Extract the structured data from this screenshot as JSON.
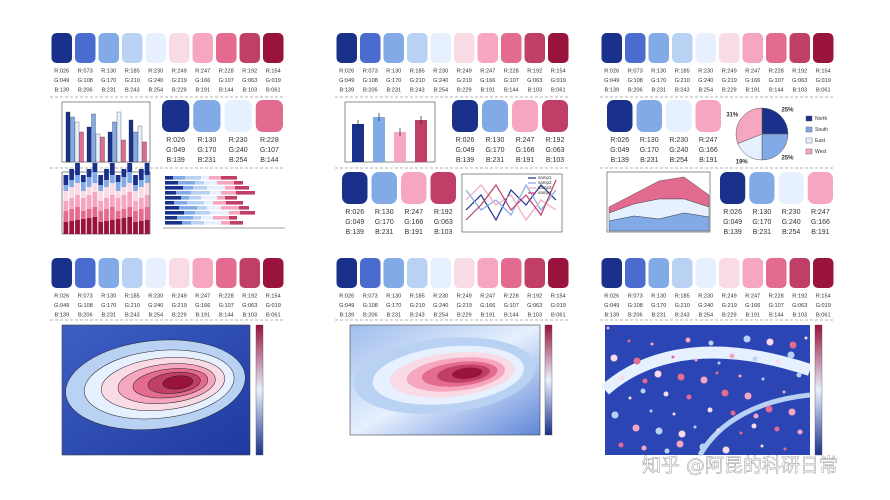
{
  "palette": [
    [
      "R:026",
      "G:049",
      "B:139"
    ],
    [
      "R:073",
      "G:108",
      "B:206"
    ],
    [
      "R:130",
      "G:170",
      "B:231"
    ],
    [
      "R:185",
      "G:210",
      "B:243"
    ],
    [
      "R:230",
      "G:240",
      "B:254"
    ],
    [
      "R:249",
      "G:219",
      "B:229"
    ],
    [
      "R:247",
      "G:166",
      "B:191"
    ],
    [
      "R:228",
      "G:107",
      "B:144"
    ],
    [
      "R:192",
      "G:063",
      "B:103"
    ],
    [
      "R:154",
      "G:019",
      "B:061"
    ]
  ],
  "pie": {
    "labels": [
      "North",
      "South",
      "East",
      "West"
    ],
    "values": [
      25,
      25,
      19,
      31
    ],
    "value_labels": [
      "25%",
      "25%",
      "19%",
      "31%"
    ]
  },
  "line_legend": [
    "samp1",
    "samp2",
    "samp3",
    "samp4"
  ],
  "watermark": "知乎 @阿昆的科研日常"
}
